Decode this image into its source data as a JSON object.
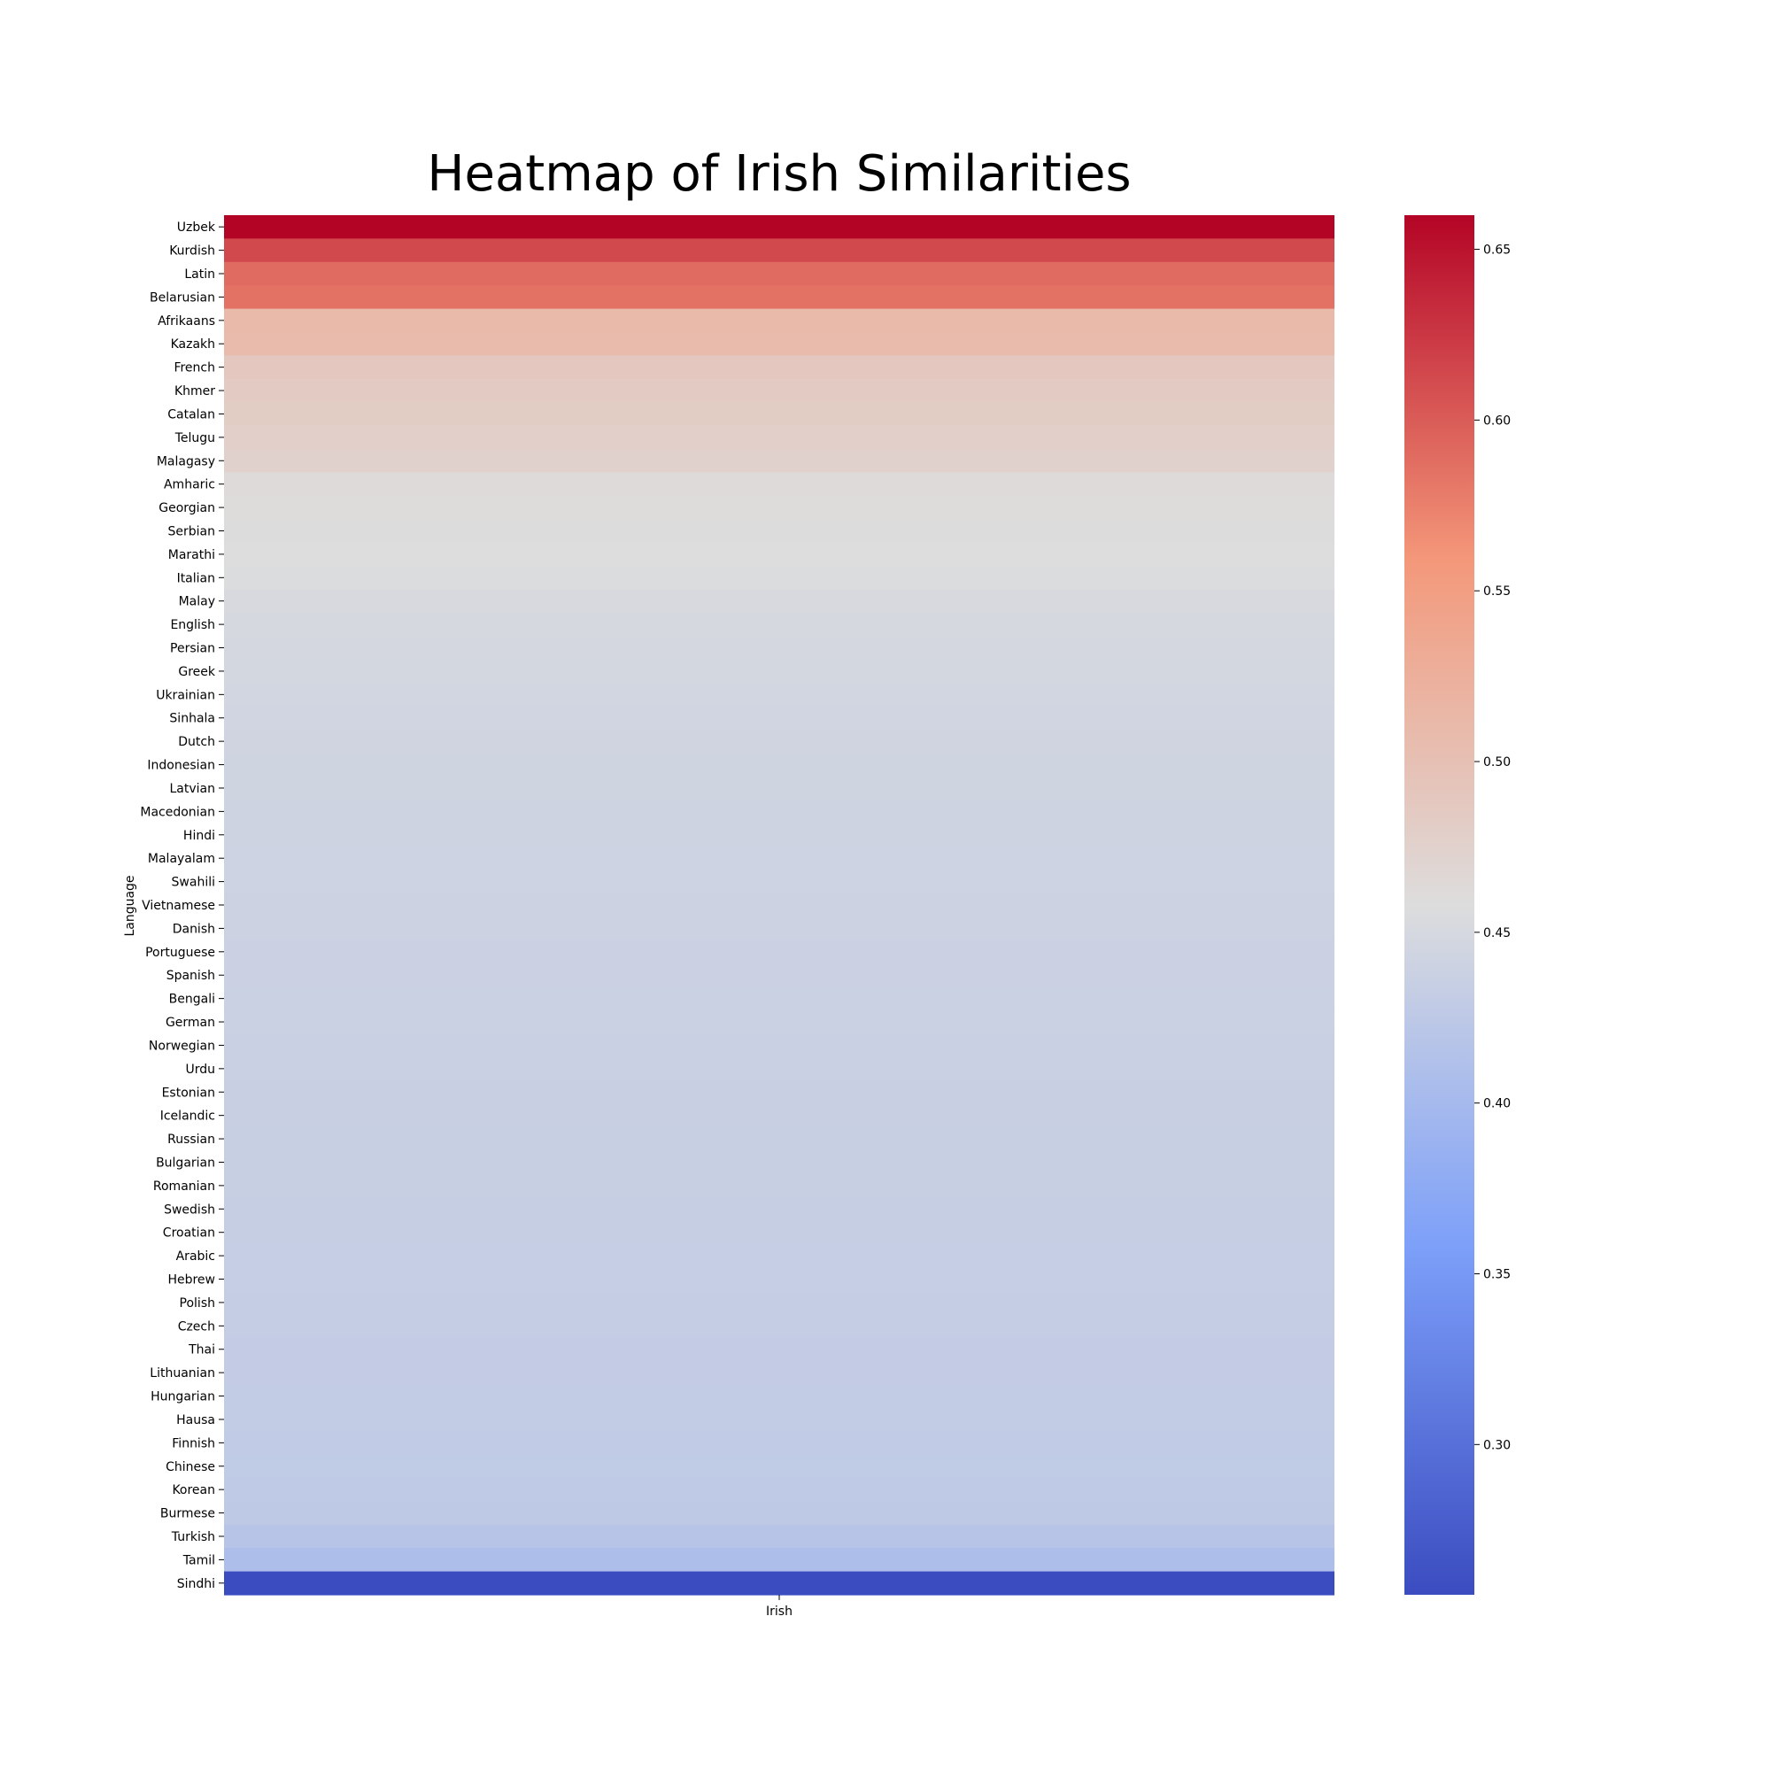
{
  "chart_data": {
    "type": "heatmap",
    "title": "Heatmap of Irish Similarities",
    "xlabel": "",
    "ylabel": "Language",
    "columns": [
      "Irish"
    ],
    "rows": [
      "Uzbek",
      "Kurdish",
      "Latin",
      "Belarusian",
      "Afrikaans",
      "Kazakh",
      "French",
      "Khmer",
      "Catalan",
      "Telugu",
      "Malagasy",
      "Amharic",
      "Georgian",
      "Serbian",
      "Marathi",
      "Italian",
      "Malay",
      "English",
      "Persian",
      "Greek",
      "Ukrainian",
      "Sinhala",
      "Dutch",
      "Indonesian",
      "Latvian",
      "Macedonian",
      "Hindi",
      "Malayalam",
      "Swahili",
      "Vietnamese",
      "Danish",
      "Portuguese",
      "Spanish",
      "Bengali",
      "German",
      "Norwegian",
      "Urdu",
      "Estonian",
      "Icelandic",
      "Russian",
      "Bulgarian",
      "Romanian",
      "Swedish",
      "Croatian",
      "Arabic",
      "Hebrew",
      "Polish",
      "Czech",
      "Thai",
      "Lithuanian",
      "Hungarian",
      "Hausa",
      "Finnish",
      "Chinese",
      "Korean",
      "Burmese",
      "Turkish",
      "Tamil",
      "Sindhi"
    ],
    "values": [
      0.66,
      0.613,
      0.59,
      0.585,
      0.51,
      0.508,
      0.49,
      0.485,
      0.482,
      0.478,
      0.475,
      0.462,
      0.46,
      0.459,
      0.458,
      0.456,
      0.452,
      0.45,
      0.449,
      0.448,
      0.446,
      0.445,
      0.444,
      0.443,
      0.443,
      0.442,
      0.442,
      0.441,
      0.441,
      0.44,
      0.44,
      0.439,
      0.439,
      0.438,
      0.438,
      0.437,
      0.437,
      0.436,
      0.436,
      0.435,
      0.435,
      0.435,
      0.434,
      0.434,
      0.433,
      0.433,
      0.432,
      0.432,
      0.431,
      0.431,
      0.43,
      0.43,
      0.429,
      0.428,
      0.427,
      0.426,
      0.418,
      0.408,
      0.256
    ],
    "colormap": "coolwarm",
    "vmin": 0.256,
    "vmax": 0.66,
    "colorbar_ticks": [
      "0.30",
      "0.35",
      "0.40",
      "0.45",
      "0.50",
      "0.55",
      "0.60",
      "0.65"
    ]
  }
}
